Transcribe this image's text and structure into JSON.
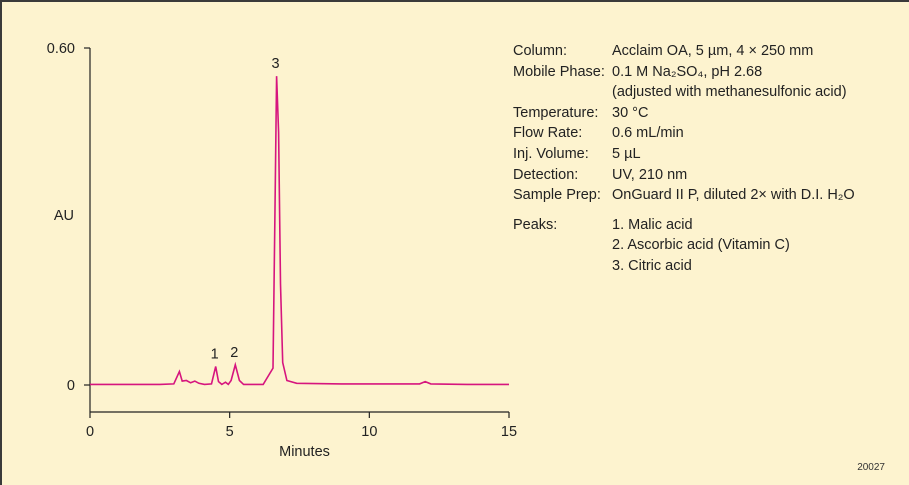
{
  "chart_data": {
    "type": "line",
    "xlabel": "Minutes",
    "ylabel": "AU",
    "xlim": [
      0,
      15
    ],
    "ylim": [
      0,
      0.6
    ],
    "x_ticks": [
      "0",
      "5",
      "10",
      "15"
    ],
    "y_ticks": [
      "0",
      "0.60"
    ],
    "grid": false,
    "legend": "none",
    "line_color": "#d6157e",
    "series": [
      {
        "x": [
          0,
          2.5,
          3.0,
          3.2,
          3.3,
          3.45,
          3.6,
          3.75,
          3.9,
          4.1,
          4.35,
          4.5,
          4.6,
          4.72,
          4.85,
          4.95,
          5.05,
          5.2,
          5.35,
          5.5,
          6.2,
          6.55,
          6.62,
          6.68,
          6.75,
          6.82,
          6.9,
          7.05,
          7.4,
          9.0,
          11.8,
          12.0,
          12.2,
          13.5,
          15.0
        ],
        "y": [
          0.001,
          0.001,
          0.002,
          0.024,
          0.007,
          0.008,
          0.004,
          0.007,
          0.003,
          0.001,
          0.002,
          0.033,
          0.006,
          0.001,
          0.005,
          0.001,
          0.008,
          0.036,
          0.008,
          0.001,
          0.001,
          0.03,
          0.3,
          0.55,
          0.45,
          0.18,
          0.04,
          0.008,
          0.003,
          0.002,
          0.002,
          0.006,
          0.002,
          0.001,
          0.001
        ]
      }
    ],
    "peak_labels": [
      {
        "label": "1",
        "x": 4.5,
        "y": 0.033
      },
      {
        "label": "2",
        "x": 5.2,
        "y": 0.036
      },
      {
        "label": "3",
        "x": 6.68,
        "y": 0.55
      }
    ]
  },
  "conditions": [
    {
      "label": "Column:",
      "value": "Acclaim OA, 5 µm, 4 × 250 mm"
    },
    {
      "label": "Mobile Phase:",
      "value": "0.1 M Na₂SO₄, pH 2.68"
    },
    {
      "label": "",
      "value": "(adjusted with methanesulfonic acid)"
    },
    {
      "label": "Temperature:",
      "value": "30 °C"
    },
    {
      "label": "Flow Rate:",
      "value": "0.6 mL/min"
    },
    {
      "label": "Inj. Volume:",
      "value": "5 µL"
    },
    {
      "label": "Detection:",
      "value": "UV, 210 nm"
    },
    {
      "label": "Sample Prep:",
      "value": "OnGuard II P, diluted 2× with D.I. H₂O"
    }
  ],
  "peaks": {
    "label": "Peaks:",
    "items": [
      "1. Malic acid",
      "2. Ascorbic acid (Vitamin C)",
      "3. Citric acid"
    ]
  },
  "figure_id": "20027"
}
